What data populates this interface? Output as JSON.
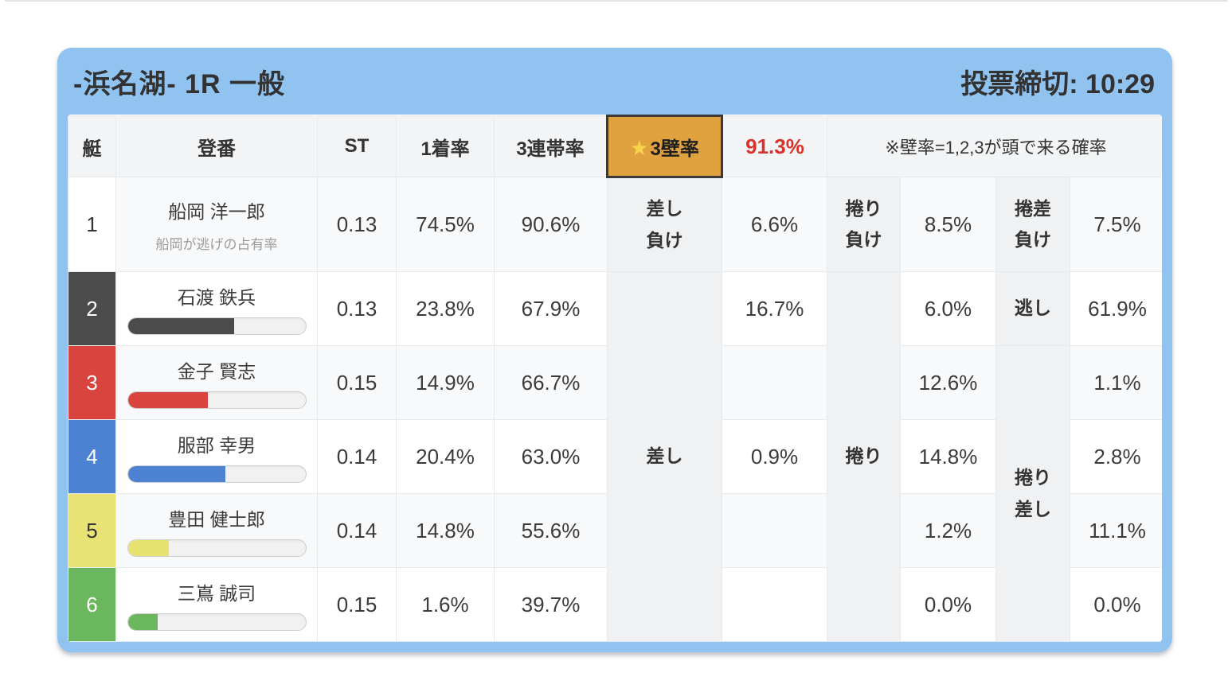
{
  "header": {
    "title": "-浜名湖- 1R 一般",
    "deadline": "投票締切: 10:29"
  },
  "columns": {
    "boat": "艇",
    "racer": "登番",
    "st": "ST",
    "win1": "1着率",
    "top3": "3連帯率"
  },
  "kabe": {
    "star": "★",
    "label": "3壁率",
    "value": "91.3%",
    "value_color": "#d7332c",
    "note": "※壁率=1,2,3が頭で来る確率",
    "highlight_bg": "#dfa23e"
  },
  "merged_labels": {
    "sashi": "差し",
    "makuri": "捲り",
    "nigashi": "逃し",
    "makurizashi_line1": "捲り",
    "makurizashi_line2": "差し"
  },
  "rows": [
    {
      "boat": "1",
      "boat_bg": "#ffffff",
      "boat_color": "#333333",
      "name": "船岡 洋一郎",
      "subtitle": "船岡が逃げの占有率",
      "st": "0.13",
      "win1": "74.5%",
      "top3": "90.6%",
      "label1_line1": "差し",
      "label1_line2": "負け",
      "val1": "6.6%",
      "label2_line1": "捲り",
      "label2_line2": "負け",
      "val2": "8.5%",
      "label3_line1": "捲差",
      "label3_line2": "負け",
      "val3": "7.5%"
    },
    {
      "boat": "2",
      "boat_bg": "#4b4b4b",
      "boat_color": "#ffffff",
      "name": "石渡 鉄兵",
      "bar_width": "60%",
      "bar_color": "#4b4b4b",
      "st": "0.13",
      "win1": "23.8%",
      "top3": "67.9%",
      "val1": "16.7%",
      "val2": "6.0%",
      "val3": "61.9%"
    },
    {
      "boat": "3",
      "boat_bg": "#d9453e",
      "boat_color": "#ffffff",
      "name": "金子 賢志",
      "bar_width": "45%",
      "bar_color": "#d9453e",
      "st": "0.15",
      "win1": "14.9%",
      "top3": "66.7%",
      "val1": "",
      "val2": "12.6%",
      "val3": "1.1%"
    },
    {
      "boat": "4",
      "boat_bg": "#4d82d3",
      "boat_color": "#ffffff",
      "name": "服部 幸男",
      "bar_width": "55%",
      "bar_color": "#4d82d3",
      "st": "0.14",
      "win1": "20.4%",
      "top3": "63.0%",
      "val1": "0.9%",
      "val2": "14.8%",
      "val3": "2.8%"
    },
    {
      "boat": "5",
      "boat_bg": "#e9e375",
      "boat_color": "#333333",
      "name": "豊田 健士郎",
      "bar_width": "23%",
      "bar_color": "#e7e170",
      "st": "0.14",
      "win1": "14.8%",
      "top3": "55.6%",
      "val1": "",
      "val2": "1.2%",
      "val3": "11.1%"
    },
    {
      "boat": "6",
      "boat_bg": "#6bb75d",
      "boat_color": "#ffffff",
      "name": "三嶌 誠司",
      "bar_width": "17%",
      "bar_color": "#6bb75d",
      "st": "0.15",
      "win1": "1.6%",
      "top3": "39.7%",
      "val1": "",
      "val2": "0.0%",
      "val3": "0.0%"
    }
  ],
  "colors": {
    "card_blue": "#91c3f1",
    "stripe": "#f8f9fa",
    "label_gray": "#f0f1f3",
    "header_gray": "#f3f4f6"
  }
}
